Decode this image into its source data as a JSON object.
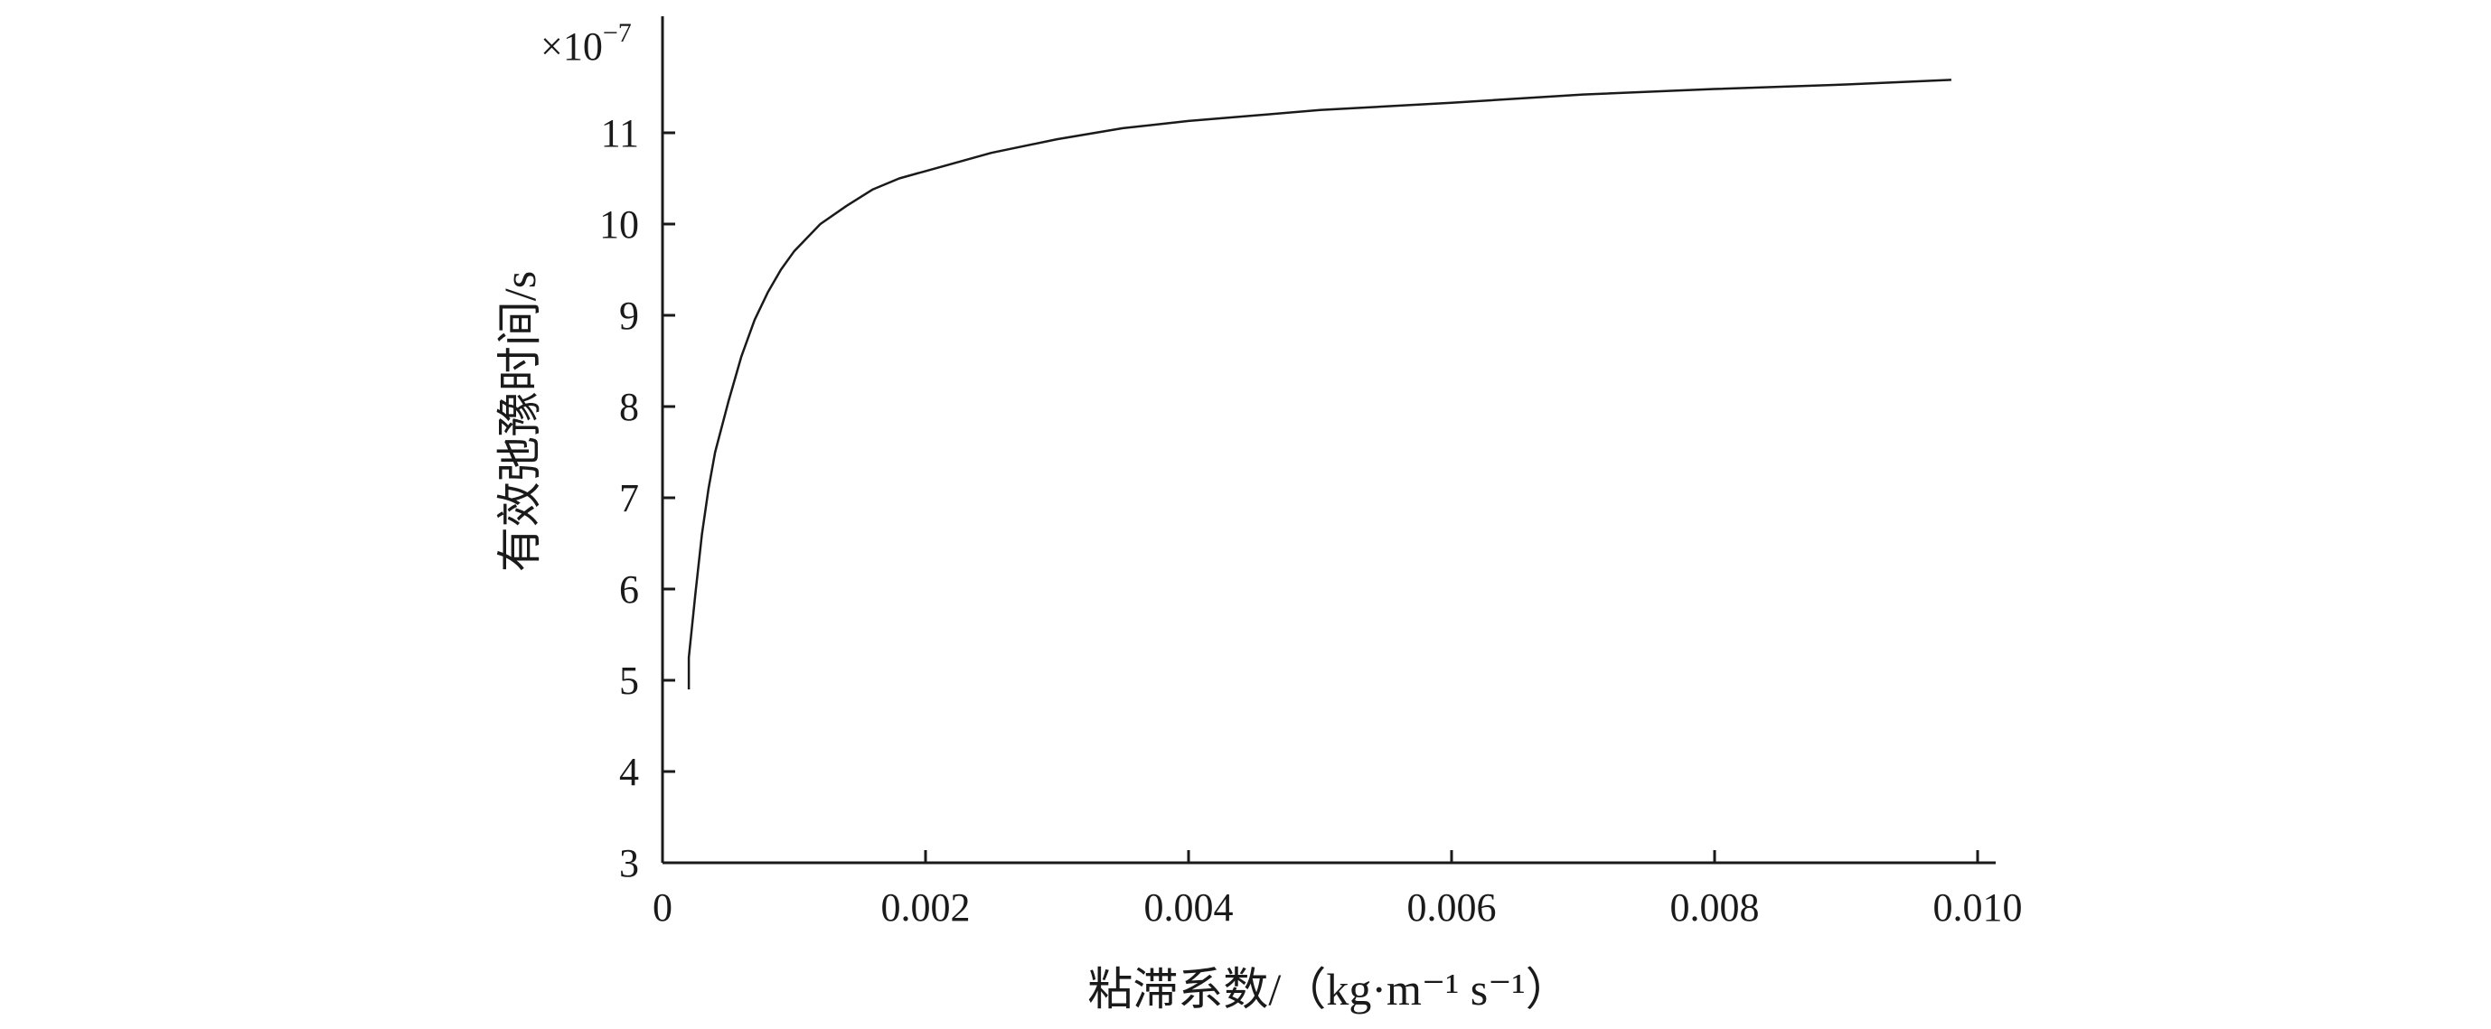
{
  "chart_data": {
    "type": "line",
    "title": "",
    "xlabel": "粘滞系数/（kg·m⁻¹ s⁻¹）",
    "ylabel": "有效弛豫时间/s",
    "y_multiplier": "×10",
    "y_multiplier_exponent": "−7",
    "xlim": [
      0,
      0.01
    ],
    "ylim": [
      3,
      12
    ],
    "x_ticks": [
      0,
      0.002,
      0.004,
      0.006,
      0.008,
      0.01
    ],
    "x_tick_labels": [
      "0",
      "0.002",
      "0.004",
      "0.006",
      "0.008",
      "0.010"
    ],
    "y_ticks": [
      3,
      4,
      5,
      6,
      7,
      8,
      9,
      10,
      11
    ],
    "y_tick_labels": [
      "3",
      "4",
      "5",
      "6",
      "7",
      "8",
      "9",
      "10",
      "11"
    ],
    "grid": false,
    "legend": "none",
    "line_color": "#1a1a1a",
    "series": [
      {
        "x": [
          0.0002,
          0.0002,
          0.00025,
          0.0003,
          0.00035,
          0.0004,
          0.0005,
          0.0006,
          0.0007,
          0.0008,
          0.0009,
          0.001,
          0.0012,
          0.0014,
          0.0016,
          0.0018,
          0.002,
          0.0025,
          0.003,
          0.0035,
          0.004,
          0.005,
          0.006,
          0.007,
          0.008,
          0.009,
          0.0098
        ],
        "values": [
          4.9,
          5.25,
          5.95,
          6.6,
          7.1,
          7.5,
          8.05,
          8.55,
          8.95,
          9.25,
          9.5,
          9.7,
          10.0,
          10.2,
          10.38,
          10.5,
          10.58,
          10.78,
          10.93,
          11.05,
          11.13,
          11.25,
          11.33,
          11.42,
          11.48,
          11.53,
          11.58
        ]
      }
    ]
  }
}
